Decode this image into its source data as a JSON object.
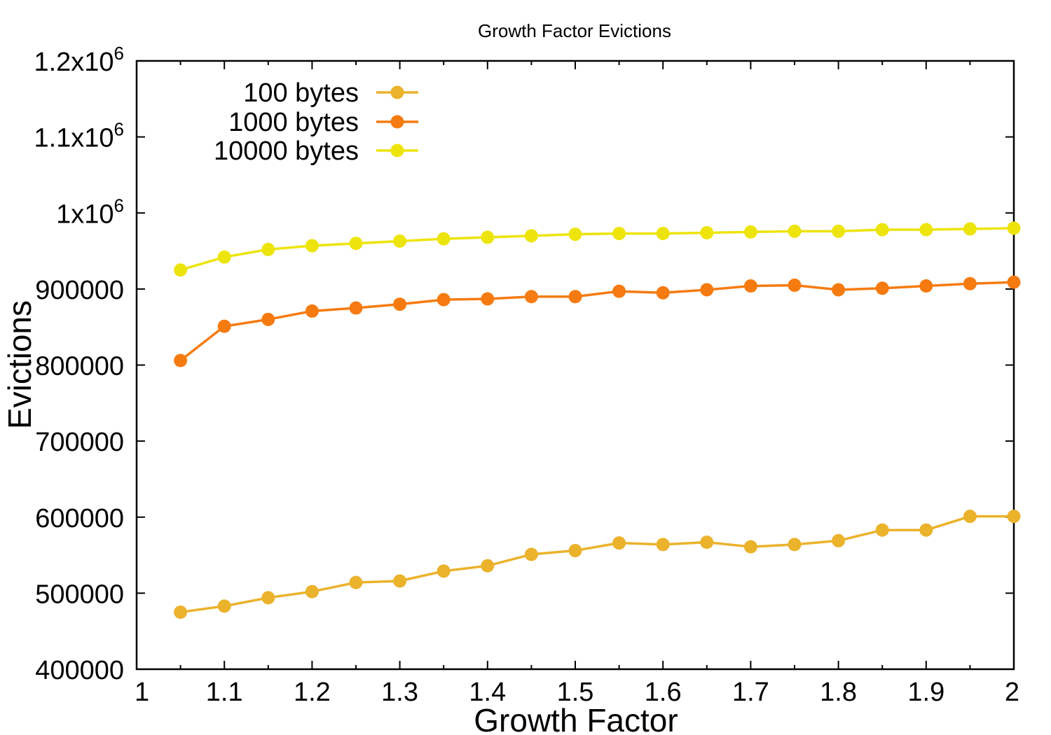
{
  "chart_data": {
    "type": "line",
    "title": "Growth Factor Evictions",
    "xlabel": "Growth Factor",
    "ylabel": "Evictions",
    "xlim": [
      1,
      2
    ],
    "ylim": [
      400000,
      1200000
    ],
    "xticks": [
      "1",
      "1.1",
      "1.2",
      "1.3",
      "1.4",
      "1.5",
      "1.6",
      "1.7",
      "1.8",
      "1.9",
      "2"
    ],
    "yticks": [
      {
        "value": 400000,
        "label": "400000",
        "sup": ""
      },
      {
        "value": 500000,
        "label": "500000",
        "sup": ""
      },
      {
        "value": 600000,
        "label": "600000",
        "sup": ""
      },
      {
        "value": 700000,
        "label": "700000",
        "sup": ""
      },
      {
        "value": 800000,
        "label": "800000",
        "sup": ""
      },
      {
        "value": 900000,
        "label": "900000",
        "sup": ""
      },
      {
        "value": 1000000,
        "label": "1x10",
        "sup": "6"
      },
      {
        "value": 1100000,
        "label": "1.1x10",
        "sup": "6"
      },
      {
        "value": 1200000,
        "label": "1.2x10",
        "sup": "6"
      }
    ],
    "legend_position": "top-left",
    "grid": false,
    "x": [
      1.05,
      1.1,
      1.15,
      1.2,
      1.25,
      1.3,
      1.35,
      1.4,
      1.45,
      1.5,
      1.55,
      1.6,
      1.65,
      1.7,
      1.75,
      1.8,
      1.85,
      1.9,
      1.95,
      2.0
    ],
    "series": [
      {
        "name": "100 bytes",
        "color": "#ebb22c",
        "values": [
          475000,
          483000,
          494000,
          502000,
          514000,
          516000,
          529000,
          536000,
          551000,
          556000,
          566000,
          564000,
          567000,
          561000,
          564000,
          569000,
          583000,
          583000,
          601000,
          601000
        ]
      },
      {
        "name": "1000 bytes",
        "color": "#f57b10",
        "values": [
          806000,
          851000,
          860000,
          871000,
          875000,
          880000,
          886000,
          887000,
          890000,
          890000,
          897000,
          895000,
          899000,
          904000,
          905000,
          899000,
          901000,
          904000,
          907000,
          909000
        ]
      },
      {
        "name": "10000 bytes",
        "color": "#ede40c",
        "values": [
          925000,
          942000,
          952000,
          957000,
          960000,
          963000,
          966000,
          968000,
          970000,
          972000,
          973000,
          973000,
          974000,
          975000,
          976000,
          976000,
          978000,
          978000,
          979000,
          980000
        ]
      }
    ]
  }
}
